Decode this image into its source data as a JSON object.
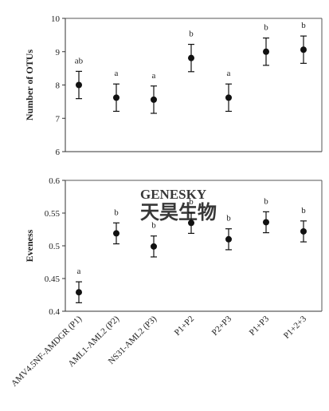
{
  "watermark": {
    "latin": "GENESKY",
    "cn": "天昊生物"
  },
  "chart_data": [
    {
      "type": "scatter",
      "subtype": "point-with-error-bars",
      "ylabel": "Number of OTUs",
      "ylim": [
        6,
        10
      ],
      "yticks": [
        "6",
        "7",
        "8",
        "9",
        "10"
      ],
      "ytick_values": [
        6,
        7,
        8,
        9,
        10
      ],
      "categories": [
        "AMV4.5NF-AMDGR (P1)",
        "AML1-AML2 (P2)",
        "NS31-AML2 (P3)",
        "P1+P2",
        "P2+P3",
        "P1+P3",
        "P1+2+3"
      ],
      "values": [
        8.0,
        7.62,
        7.56,
        8.81,
        7.62,
        9.0,
        9.06
      ],
      "errors": [
        0.41,
        0.41,
        0.41,
        0.41,
        0.41,
        0.41,
        0.41
      ],
      "letters": [
        "ab",
        "a",
        "a",
        "b",
        "a",
        "b",
        "b"
      ],
      "show_category_labels": false
    },
    {
      "type": "scatter",
      "subtype": "point-with-error-bars",
      "ylabel": "Eveness",
      "ylim": [
        0.4,
        0.6
      ],
      "yticks": [
        "0.4",
        "0.45",
        "0.5",
        "0.55",
        "0.6"
      ],
      "ytick_values": [
        0.4,
        0.45,
        0.5,
        0.55,
        0.6
      ],
      "categories": [
        "AMV4.5NF-AMDGR (P1)",
        "AML1-AML2 (P2)",
        "NS31-AML2 (P3)",
        "P1+P2",
        "P2+P3",
        "P1+P3",
        "P1+2+3"
      ],
      "values": [
        0.429,
        0.519,
        0.499,
        0.535,
        0.51,
        0.536,
        0.522
      ],
      "errors": [
        0.016,
        0.016,
        0.016,
        0.016,
        0.016,
        0.016,
        0.016
      ],
      "letters": [
        "a",
        "b",
        "b",
        "b",
        "b",
        "b",
        "b"
      ],
      "show_category_labels": true
    }
  ]
}
